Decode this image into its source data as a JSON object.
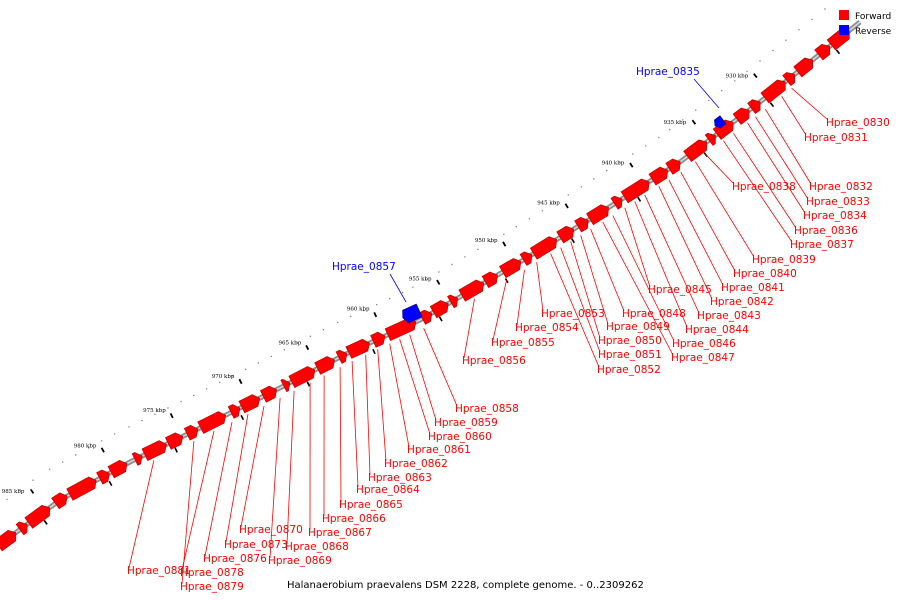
{
  "caption": "Halanaerobium praevalens DSM 2228, complete genome. - 0..2309262",
  "legend": [
    {
      "label": "Forward",
      "color": "#ff0000"
    },
    {
      "label": "Reverse",
      "color": "#0000ff"
    }
  ],
  "colors": {
    "forward": "#ff0000",
    "reverse": "#0000ff",
    "backbone": "#9a9a9a"
  },
  "ticks": [
    "930 kbp",
    "935 kbp",
    "940 kbp",
    "945 kbp",
    "950 kbp",
    "955 kbp",
    "960 kbp",
    "965 kbp",
    "970 kbp",
    "975 kbp",
    "980 kbp",
    "985 kbp"
  ],
  "forward_labels": [
    "Hprae_0830",
    "Hprae_0831",
    "Hprae_0832",
    "Hprae_0833",
    "Hprae_0834",
    "Hprae_0836",
    "Hprae_0837",
    "Hprae_0838",
    "Hprae_0839",
    "Hprae_0840",
    "Hprae_0841",
    "Hprae_0842",
    "Hprae_0843",
    "Hprae_0844",
    "Hprae_0845",
    "Hprae_0846",
    "Hprae_0847",
    "Hprae_0848",
    "Hprae_0849",
    "Hprae_0850",
    "Hprae_0851",
    "Hprae_0852",
    "Hprae_0853",
    "Hprae_0854",
    "Hprae_0855",
    "Hprae_0856",
    "Hprae_0858",
    "Hprae_0859",
    "Hprae_0860",
    "Hprae_0861",
    "Hprae_0862",
    "Hprae_0863",
    "Hprae_0864",
    "Hprae_0865",
    "Hprae_0866",
    "Hprae_0867",
    "Hprae_0868",
    "Hprae_0869",
    "Hprae_0870",
    "Hprae_0873",
    "Hprae_0876",
    "Hprae_0878",
    "Hprae_0879",
    "Hprae_0881"
  ],
  "reverse_labels": [
    "Hprae_0835",
    "Hprae_0857"
  ]
}
